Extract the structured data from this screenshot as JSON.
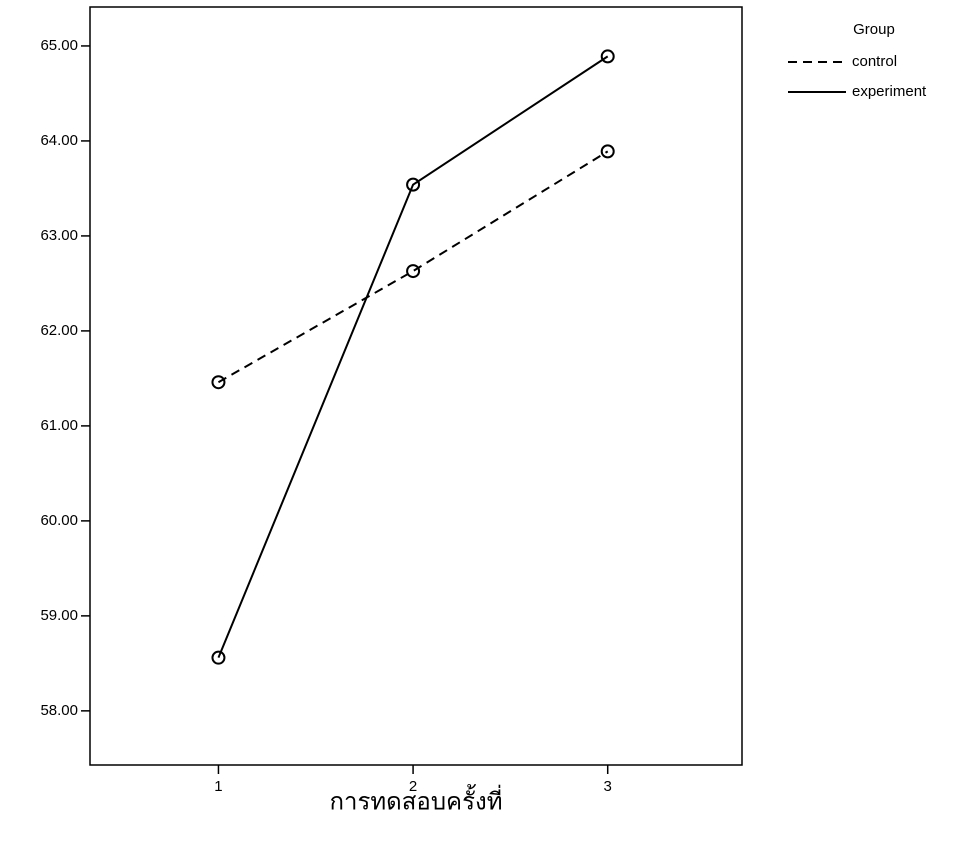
{
  "chart_data": {
    "type": "line",
    "x_label": "การทดสอบครั้งที่",
    "x": [
      1,
      2,
      3
    ],
    "xlim": [
      0.34,
      3.69
    ],
    "xticks": [
      1,
      2,
      3
    ],
    "ylim": [
      57.43,
      65.41
    ],
    "yticks": [
      {
        "value": 58,
        "label": "58.00"
      },
      {
        "value": 59,
        "label": "59.00"
      },
      {
        "value": 60,
        "label": "60.00"
      },
      {
        "value": 61,
        "label": "61.00"
      },
      {
        "value": 62,
        "label": "62.00"
      },
      {
        "value": 63,
        "label": "63.00"
      },
      {
        "value": 64,
        "label": "64.00"
      },
      {
        "value": 65,
        "label": "65.00"
      }
    ],
    "legend_title": "Group",
    "series": [
      {
        "name": "control",
        "color": "#000000",
        "line_style": "dashed",
        "values": [
          61.46,
          62.63,
          63.89
        ]
      },
      {
        "name": "experiment",
        "color": "#000000",
        "line_style": "solid",
        "values": [
          58.56,
          63.54,
          64.89
        ]
      }
    ]
  }
}
